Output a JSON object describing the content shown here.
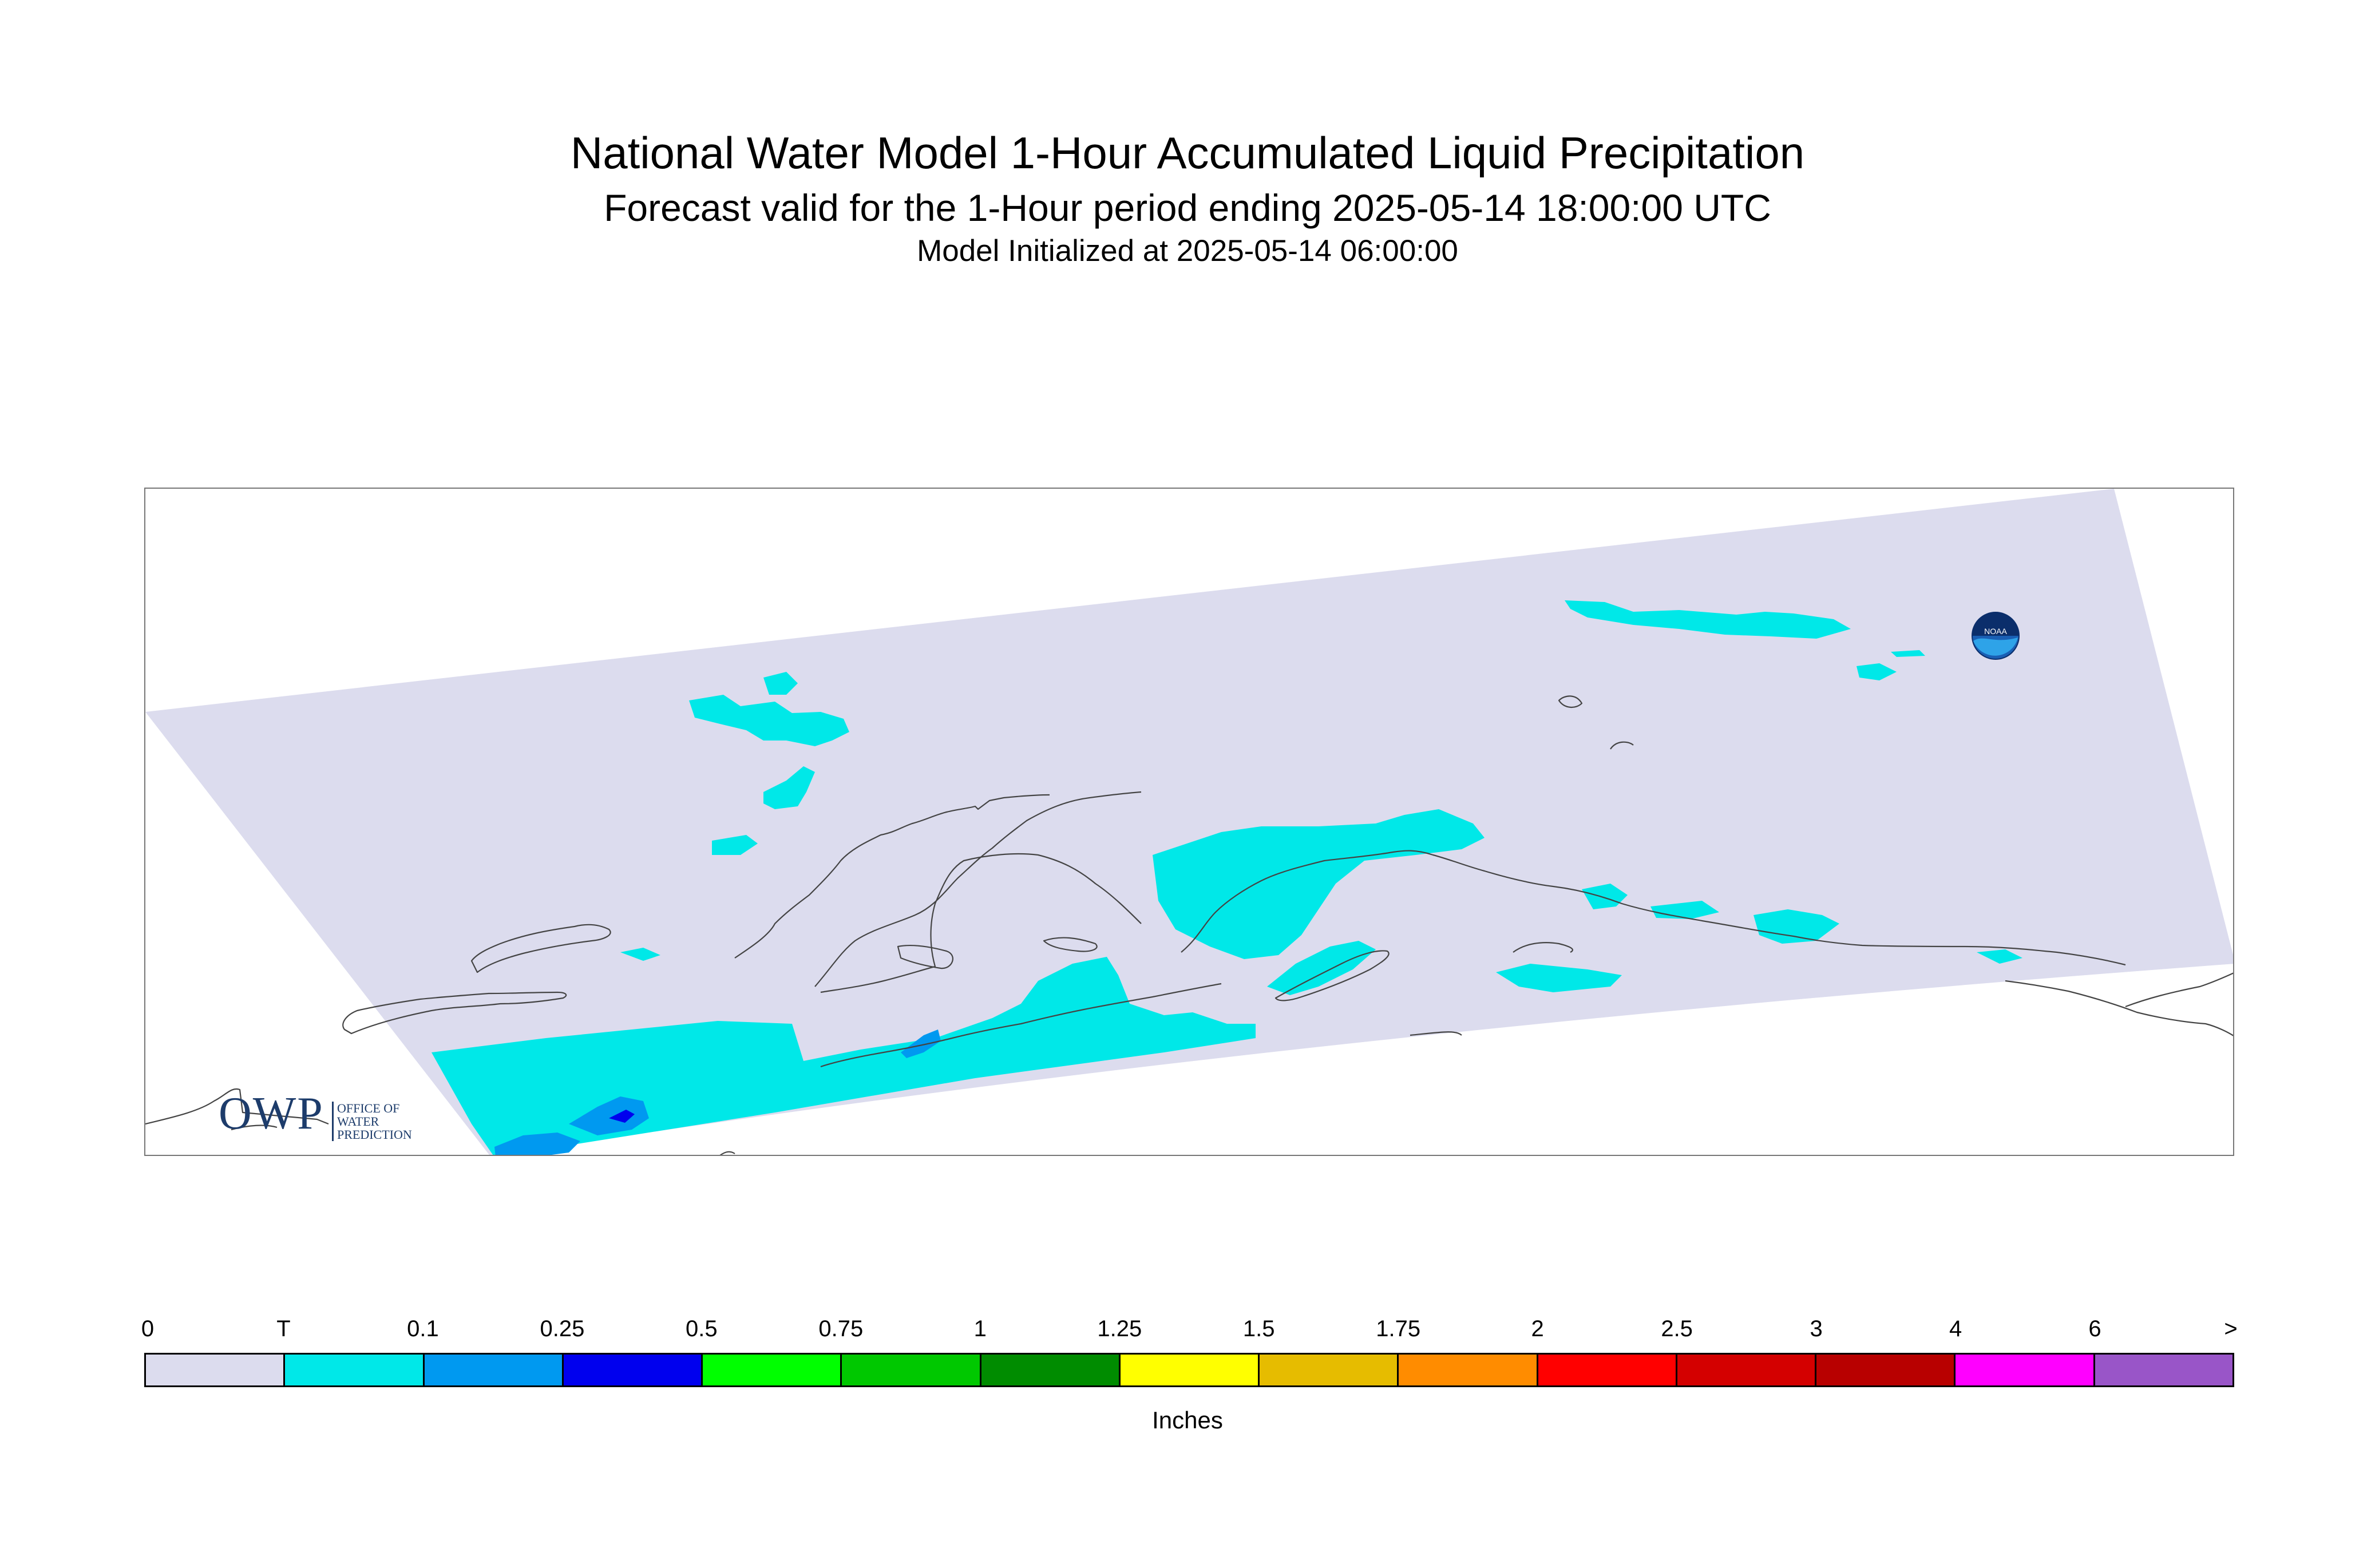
{
  "title": "National Water Model 1-Hour Accumulated Liquid Precipitation",
  "subtitle": "Forecast valid for the 1-Hour period ending 2025-05-14 18:00:00 UTC",
  "init_line": "Model Initialized at 2025-05-14 06:00:00",
  "logos": {
    "owp_big": "OWP",
    "owp_small_1": "OFFICE OF",
    "owp_small_2": "WATER",
    "owp_small_3": "PREDICTION",
    "noaa": "NOAA"
  },
  "colors": {
    "domain": "#dcdcee",
    "trace": "#00e8e8",
    "coast": "#444444"
  },
  "legend": {
    "units": "Inches",
    "ticks": [
      "0",
      "T",
      "0.1",
      "0.25",
      "0.5",
      "0.75",
      "1",
      "1.25",
      "1.5",
      "1.75",
      "2",
      "2.5",
      "3",
      "4",
      "6",
      ">"
    ],
    "colors": [
      "#dcdcee",
      "#00e8e8",
      "#0099f0",
      "#0000ee",
      "#00ff00",
      "#00c800",
      "#008c00",
      "#ffff00",
      "#e6bc00",
      "#ff8c00",
      "#ff0000",
      "#d40000",
      "#b80000",
      "#ff00ff",
      "#9955c8"
    ]
  }
}
